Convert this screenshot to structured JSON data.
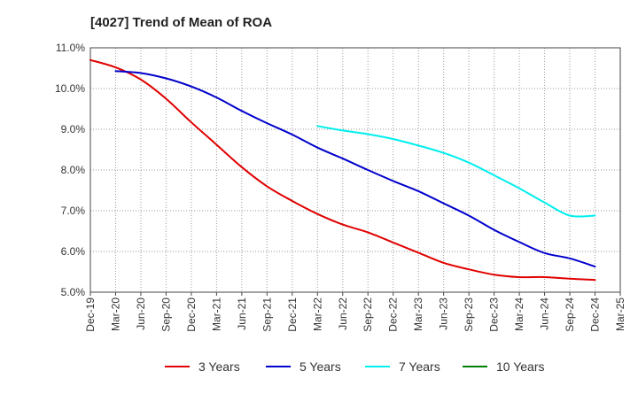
{
  "chart_data": {
    "type": "line",
    "title": "[4027]  Trend of Mean of ROA",
    "xlabel": "",
    "ylabel": "",
    "ylim": [
      5.0,
      11.0
    ],
    "yticks": [
      "5.0%",
      "6.0%",
      "7.0%",
      "8.0%",
      "9.0%",
      "10.0%",
      "11.0%"
    ],
    "ytick_values": [
      5.0,
      6.0,
      7.0,
      8.0,
      9.0,
      10.0,
      11.0
    ],
    "categories": [
      "Dec-19",
      "Mar-20",
      "Jun-20",
      "Sep-20",
      "Dec-20",
      "Mar-21",
      "Jun-21",
      "Sep-21",
      "Dec-21",
      "Mar-22",
      "Jun-22",
      "Sep-22",
      "Dec-22",
      "Mar-23",
      "Jun-23",
      "Sep-23",
      "Dec-23",
      "Mar-24",
      "Jun-24",
      "Sep-24",
      "Dec-24",
      "Mar-25"
    ],
    "grid": true,
    "legend_position": "bottom",
    "series": [
      {
        "name": "3 Years",
        "color": "#e00000",
        "values": [
          10.7,
          10.52,
          10.22,
          9.75,
          9.17,
          8.62,
          8.07,
          7.6,
          7.24,
          6.92,
          6.66,
          6.47,
          6.22,
          5.97,
          5.72,
          5.56,
          5.43,
          5.37,
          5.37,
          5.33,
          5.3,
          null
        ]
      },
      {
        "name": "5 Years",
        "color": "#0000cc",
        "values": [
          null,
          10.43,
          10.38,
          10.25,
          10.05,
          9.78,
          9.45,
          9.15,
          8.87,
          8.55,
          8.28,
          8.0,
          7.73,
          7.48,
          7.18,
          6.88,
          6.53,
          6.23,
          5.96,
          5.83,
          5.63,
          null
        ]
      },
      {
        "name": "7 Years",
        "color": "#00eeee",
        "values": [
          null,
          null,
          null,
          null,
          null,
          null,
          null,
          null,
          null,
          9.08,
          8.97,
          8.88,
          8.76,
          8.6,
          8.42,
          8.18,
          7.87,
          7.55,
          7.2,
          6.88,
          6.88,
          null
        ]
      },
      {
        "name": "10 Years",
        "color": "#008000",
        "values": [
          null,
          null,
          null,
          null,
          null,
          null,
          null,
          null,
          null,
          null,
          null,
          null,
          null,
          null,
          null,
          null,
          null,
          null,
          null,
          null,
          null,
          null
        ]
      }
    ]
  }
}
